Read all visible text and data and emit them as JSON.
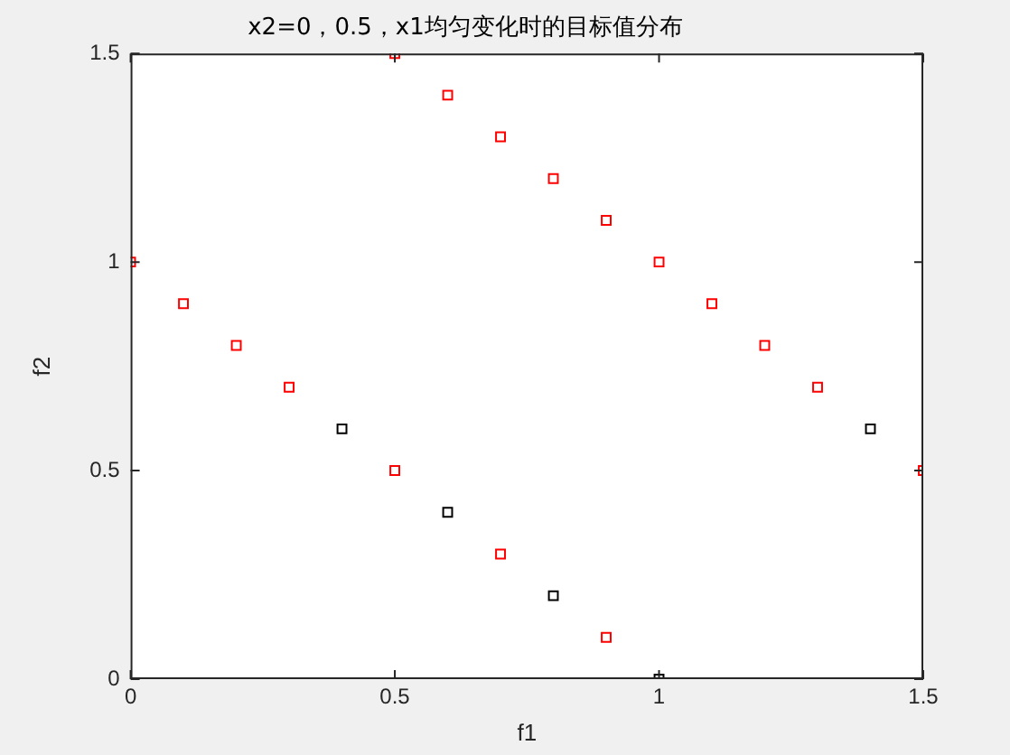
{
  "chart_data": {
    "type": "scatter",
    "title": "x2=0，0.5，x1均匀变化时的目标值分布",
    "xlabel": "f1",
    "ylabel": "f2",
    "xlim": [
      0,
      1.5
    ],
    "ylim": [
      0,
      1.5
    ],
    "xticks": [
      0,
      0.5,
      1,
      1.5
    ],
    "yticks": [
      0,
      0.5,
      1,
      1.5
    ],
    "grid": false,
    "legend": false,
    "marker": "square",
    "series": [
      {
        "color": "#000000",
        "x": [
          0.4,
          0.6,
          0.8,
          1,
          1.4
        ],
        "values": [
          0.6,
          0.4,
          0.2,
          0,
          0.6
        ]
      },
      {
        "color": "#ff0000",
        "x": [
          0,
          0.1,
          0.2,
          0.3,
          0.5,
          0.6,
          0.7,
          0.8,
          0.9,
          1,
          1.1,
          1.2,
          1.3,
          1.5,
          0.5,
          0.7,
          0.9
        ],
        "values": [
          1,
          0.9,
          0.8,
          0.7,
          1.5,
          1.4,
          1.3,
          1.2,
          1.1,
          1,
          0.9,
          0.8,
          0.7,
          0.5,
          0.5,
          0.3,
          0.1
        ]
      }
    ]
  }
}
